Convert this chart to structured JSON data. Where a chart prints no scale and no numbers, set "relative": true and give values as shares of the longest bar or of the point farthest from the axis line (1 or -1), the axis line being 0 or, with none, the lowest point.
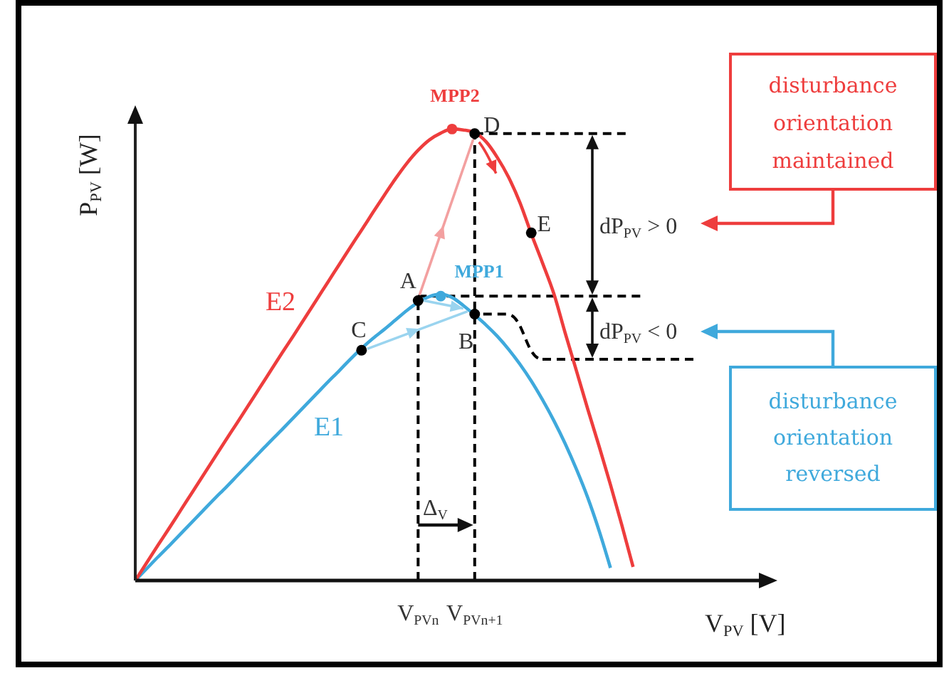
{
  "chart_data": {
    "type": "line",
    "relative": true,
    "xlabel": "V$_{PV}$ [V]",
    "ylabel": "P$_{PV}$ [W]",
    "categories": [
      null,
      null,
      null,
      null,
      null,
      null,
      null,
      null,
      null,
      null,
      null,
      null,
      null,
      null,
      null,
      null,
      null,
      null,
      null,
      null,
      null,
      null,
      null,
      null,
      null,
      "V$_{PVn}$",
      null,
      null,
      null,
      null,
      "V$_{PVn+1}$",
      null,
      null,
      null,
      null,
      null,
      null,
      null,
      null,
      null,
      null,
      null,
      null,
      null,
      null,
      null,
      null,
      null,
      null,
      null,
      null,
      null,
      null,
      null,
      null,
      null,
      null
    ],
    "marker": "none",
    "line_style": "solid",
    "series": [
      {
        "name": "E1",
        "color": "#3fa9dc",
        "values": [
          0,
          0.026,
          0.052,
          0.077,
          0.103,
          0.129,
          0.155,
          0.181,
          0.206,
          0.232,
          0.258,
          0.284,
          0.31,
          0.335,
          0.361,
          0.387,
          0.413,
          0.439,
          0.464,
          0.49,
          0.514,
          0.536,
          0.556,
          0.577,
          0.598,
          0.616,
          0.629,
          0.634,
          0.627,
          0.609,
          0.588,
          0.566,
          0.541,
          0.512,
          0.479,
          0.442,
          0.4,
          0.354,
          0.303,
          0.246,
          0.183,
          0.11,
          0.028,
          null,
          null,
          null,
          null,
          null,
          null,
          null,
          null,
          null,
          null,
          null,
          null,
          null,
          null
        ]
      },
      {
        "name": "E2",
        "color": "#ee3d3d",
        "values": [
          0,
          0.039,
          0.078,
          0.116,
          0.155,
          0.194,
          0.233,
          0.272,
          0.311,
          0.349,
          0.388,
          0.427,
          0.466,
          0.505,
          0.543,
          0.582,
          0.621,
          0.66,
          0.699,
          0.738,
          0.776,
          0.815,
          0.853,
          0.89,
          0.924,
          0.953,
          0.976,
          0.991,
          1.0,
          0.998,
          0.992,
          0.972,
          0.937,
          0.893,
          0.837,
          0.768,
          0.703,
          0.635,
          0.548,
          0.464,
          0.379,
          0.297,
          0.212,
          0.123,
          0.03,
          null,
          null,
          null,
          null,
          null,
          null,
          null,
          null,
          null,
          null,
          null,
          null
        ]
      },
      {
        "type": "line",
        "color": "#000000",
        "line_style": "dashed",
        "x": [
          "V$_{PVn}$",
          "V$_{PVn}$"
        ],
        "values": [
          0,
          0.63
        ]
      },
      {
        "type": "scatter",
        "marker": "circle",
        "values": [
          null,
          null,
          null,
          null,
          null,
          null,
          null,
          null,
          null,
          null,
          null,
          null,
          null,
          null,
          null,
          null,
          null,
          null,
          null,
          null,
          0.51,
          null,
          null,
          null,
          null,
          0.62,
          null,
          0.63,
          null,
          null,
          0.59,
          null,
          null,
          null,
          null,
          null,
          null,
          null,
          null,
          null,
          null,
          null,
          null,
          null,
          null,
          null,
          null,
          null,
          null,
          null,
          null,
          null,
          null,
          null,
          null,
          null,
          null
        ],
        "colors": [
          null,
          null,
          null,
          null,
          null,
          null,
          null,
          null,
          null,
          null,
          null,
          null,
          null,
          null,
          null,
          null,
          null,
          null,
          null,
          null,
          "#000000",
          null,
          null,
          null,
          null,
          "#000000",
          null,
          "#3fa9dc",
          null,
          null,
          "#000000",
          null,
          null,
          null,
          null,
          null,
          null,
          null,
          null,
          null,
          null,
          null,
          null,
          null,
          null,
          null,
          null,
          null,
          null,
          null,
          null,
          null,
          null,
          null,
          null,
          null,
          null
        ]
      },
      {
        "type": "scatter",
        "marker": "circle",
        "values": [
          null,
          null,
          null,
          null,
          null,
          null,
          null,
          null,
          null,
          null,
          null,
          null,
          null,
          null,
          null,
          null,
          null,
          null,
          null,
          null,
          null,
          null,
          null,
          null,
          null,
          null,
          null,
          null,
          1.0,
          null,
          0.99,
          null,
          null,
          null,
          null,
          0.77,
          null,
          null,
          null,
          null,
          null,
          null,
          null,
          null,
          null,
          null,
          null,
          null,
          null,
          null,
          null,
          null,
          null,
          null,
          null,
          null,
          null
        ],
        "colors": [
          null,
          null,
          null,
          null,
          null,
          null,
          null,
          null,
          null,
          null,
          null,
          null,
          null,
          null,
          null,
          null,
          null,
          null,
          null,
          null,
          null,
          null,
          null,
          null,
          null,
          null,
          null,
          null,
          "#ee3d3d",
          null,
          "#000000",
          null,
          null,
          null,
          null,
          "#000000",
          null,
          null,
          null,
          null,
          null,
          null,
          null,
          null,
          null,
          null,
          null,
          null,
          null,
          null,
          null,
          null,
          null,
          null,
          null,
          null,
          null
        ]
      }
    ],
    "ref_lines": [
      {
        "axis": "x",
        "value": "V$_{PVn+1}$",
        "color": "#000000",
        "line_style": "dashed"
      },
      {
        "axis": "y",
        "value": 0.99,
        "color": "#000000",
        "line_style": "dashed"
      },
      {
        "axis": "y",
        "value": 0.63,
        "color": "#000000",
        "line_style": "dashed"
      },
      {
        "axis": "y",
        "value": 0.49,
        "color": "#000000",
        "line_style": "dashed"
      }
    ],
    "annotations": [
      "MPP2",
      "MPP1",
      {
        "text": "A",
        "x": "V$_{PVn}$",
        "y": 0.62
      },
      {
        "text": "B",
        "x": "V$_{PVn+1}$",
        "y": 0.59
      },
      "C",
      {
        "text": "D",
        "x": "V$_{PVn+1}$",
        "y": 0.99
      },
      "E",
      "Δ$_{V}$",
      "dP$_{PV}$ > 0",
      "dP$_{PV}$ < 0",
      "disturbance orientation maintained",
      "disturbance orientation reversed"
    ]
  }
}
